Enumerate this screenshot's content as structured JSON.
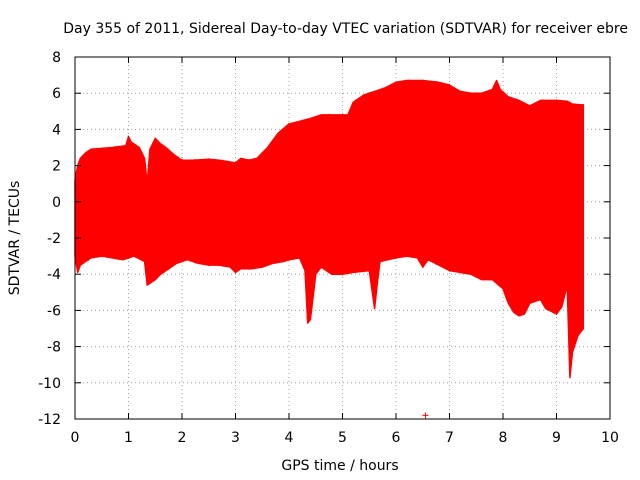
{
  "chart_data": {
    "type": "area",
    "title": "Day 355 of 2011, Sidereal Day-to-day VTEC variation (SDTVAR) for receiver ebre",
    "xlabel": "GPS time / hours",
    "ylabel": "SDTVAR / TECUs",
    "xlim": [
      0,
      10
    ],
    "ylim": [
      -12,
      8
    ],
    "x_ticks": [
      0,
      1,
      2,
      3,
      4,
      5,
      6,
      7,
      8,
      9,
      10
    ],
    "y_ticks": [
      -12,
      -10,
      -8,
      -6,
      -4,
      -2,
      0,
      2,
      4,
      6,
      8
    ],
    "grid": true,
    "series_color": "#ff0000",
    "series": [
      {
        "name": "SDTVAR",
        "upper": [
          [
            0,
            1.2
          ],
          [
            0.05,
            2.0
          ],
          [
            0.1,
            2.4
          ],
          [
            0.2,
            2.7
          ],
          [
            0.3,
            2.9
          ],
          [
            0.5,
            2.95
          ],
          [
            0.7,
            3.0
          ],
          [
            0.95,
            3.1
          ],
          [
            1.0,
            3.6
          ],
          [
            1.05,
            3.3
          ],
          [
            1.2,
            3.0
          ],
          [
            1.3,
            2.4
          ],
          [
            1.35,
            1.0
          ],
          [
            1.4,
            2.9
          ],
          [
            1.5,
            3.5
          ],
          [
            1.6,
            3.2
          ],
          [
            1.7,
            3.0
          ],
          [
            1.85,
            2.6
          ],
          [
            2.0,
            2.3
          ],
          [
            2.2,
            2.3
          ],
          [
            2.5,
            2.35
          ],
          [
            2.7,
            2.3
          ],
          [
            2.9,
            2.2
          ],
          [
            3.0,
            2.15
          ],
          [
            3.1,
            2.4
          ],
          [
            3.25,
            2.3
          ],
          [
            3.4,
            2.4
          ],
          [
            3.6,
            3.0
          ],
          [
            3.8,
            3.8
          ],
          [
            4.0,
            4.3
          ],
          [
            4.2,
            4.45
          ],
          [
            4.4,
            4.6
          ],
          [
            4.6,
            4.8
          ],
          [
            4.8,
            4.8
          ],
          [
            5.0,
            4.8
          ],
          [
            5.1,
            4.8
          ],
          [
            5.2,
            5.5
          ],
          [
            5.4,
            5.9
          ],
          [
            5.6,
            6.1
          ],
          [
            5.8,
            6.3
          ],
          [
            6.0,
            6.6
          ],
          [
            6.2,
            6.7
          ],
          [
            6.5,
            6.7
          ],
          [
            6.8,
            6.6
          ],
          [
            7.0,
            6.45
          ],
          [
            7.2,
            6.1
          ],
          [
            7.4,
            6.0
          ],
          [
            7.6,
            6.0
          ],
          [
            7.8,
            6.2
          ],
          [
            7.88,
            6.7
          ],
          [
            7.95,
            6.2
          ],
          [
            8.1,
            5.8
          ],
          [
            8.3,
            5.6
          ],
          [
            8.5,
            5.3
          ],
          [
            8.7,
            5.6
          ],
          [
            9.0,
            5.6
          ],
          [
            9.2,
            5.55
          ],
          [
            9.3,
            5.4
          ],
          [
            9.5,
            5.35
          ]
        ],
        "lower": [
          [
            0,
            -3.0
          ],
          [
            0.05,
            -3.9
          ],
          [
            0.1,
            -3.5
          ],
          [
            0.3,
            -3.1
          ],
          [
            0.5,
            -3.0
          ],
          [
            0.7,
            -3.1
          ],
          [
            0.9,
            -3.2
          ],
          [
            1.1,
            -3.0
          ],
          [
            1.3,
            -3.3
          ],
          [
            1.35,
            -4.6
          ],
          [
            1.4,
            -4.5
          ],
          [
            1.5,
            -4.3
          ],
          [
            1.6,
            -4.0
          ],
          [
            1.7,
            -3.8
          ],
          [
            1.9,
            -3.4
          ],
          [
            2.1,
            -3.2
          ],
          [
            2.3,
            -3.4
          ],
          [
            2.5,
            -3.5
          ],
          [
            2.7,
            -3.5
          ],
          [
            2.9,
            -3.6
          ],
          [
            3.0,
            -3.9
          ],
          [
            3.1,
            -3.7
          ],
          [
            3.3,
            -3.7
          ],
          [
            3.5,
            -3.6
          ],
          [
            3.7,
            -3.4
          ],
          [
            3.9,
            -3.3
          ],
          [
            4.0,
            -3.2
          ],
          [
            4.2,
            -3.1
          ],
          [
            4.3,
            -3.8
          ],
          [
            4.35,
            -6.7
          ],
          [
            4.4,
            -6.5
          ],
          [
            4.5,
            -4.0
          ],
          [
            4.6,
            -3.6
          ],
          [
            4.8,
            -4.0
          ],
          [
            5.0,
            -4.0
          ],
          [
            5.2,
            -3.9
          ],
          [
            5.5,
            -3.8
          ],
          [
            5.6,
            -5.9
          ],
          [
            5.65,
            -4.5
          ],
          [
            5.7,
            -3.3
          ],
          [
            6.0,
            -3.1
          ],
          [
            6.2,
            -3.0
          ],
          [
            6.4,
            -3.1
          ],
          [
            6.5,
            -3.6
          ],
          [
            6.6,
            -3.2
          ],
          [
            6.8,
            -3.5
          ],
          [
            7.0,
            -3.8
          ],
          [
            7.2,
            -3.9
          ],
          [
            7.4,
            -4.0
          ],
          [
            7.6,
            -4.3
          ],
          [
            7.8,
            -4.3
          ],
          [
            8.0,
            -4.8
          ],
          [
            8.1,
            -5.6
          ],
          [
            8.2,
            -6.1
          ],
          [
            8.3,
            -6.3
          ],
          [
            8.4,
            -6.2
          ],
          [
            8.5,
            -5.6
          ],
          [
            8.7,
            -5.4
          ],
          [
            8.8,
            -5.9
          ],
          [
            9.0,
            -6.2
          ],
          [
            9.1,
            -5.8
          ],
          [
            9.2,
            -4.6
          ],
          [
            9.25,
            -9.7
          ],
          [
            9.3,
            -8.3
          ],
          [
            9.4,
            -7.4
          ],
          [
            9.5,
            -7.0
          ]
        ]
      }
    ],
    "outliers": [
      [
        6.55,
        -11.8
      ]
    ],
    "tick_labels_x": [
      "0",
      "1",
      "2",
      "3",
      "4",
      "5",
      "6",
      "7",
      "8",
      "9",
      "10"
    ],
    "tick_labels_y": [
      "-12",
      "-10",
      "-8",
      "-6",
      "-4",
      "-2",
      "0",
      "2",
      "4",
      "6",
      "8"
    ]
  }
}
